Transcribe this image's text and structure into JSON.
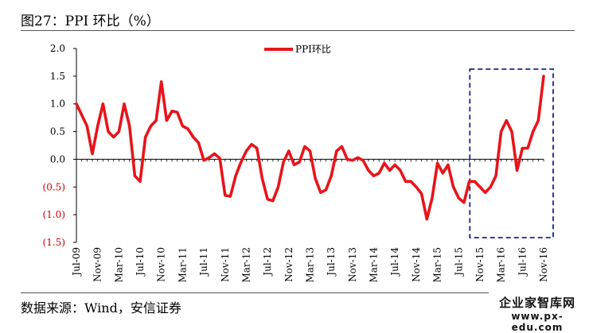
{
  "title": "图27：PPI 环比（%）",
  "source": "数据来源：Wind，安信证券",
  "watermark": {
    "name": "企业家智库网",
    "url": "www.px-edu.com"
  },
  "colors": {
    "series": "#e8141b",
    "negative_tick": "#cc0000",
    "positive_tick": "#000000",
    "highlight_box": "#1f1f8f",
    "axis": "#000000"
  },
  "chart_data": {
    "type": "line",
    "title": "",
    "xlabel": "",
    "ylabel": "",
    "ylim": [
      -1.5,
      2.0
    ],
    "y_ticks": [
      2.0,
      1.5,
      1.0,
      0.5,
      0.0,
      -0.5,
      -1.0,
      -1.5
    ],
    "y_tick_labels": [
      "2.0",
      "1.5",
      "1.0",
      "0.5",
      "0.0",
      "(0.5)",
      "(1.0)",
      "(1.5)"
    ],
    "x_tick_labels": [
      "Jul-09",
      "Nov-09",
      "Mar-10",
      "Jul-10",
      "Nov-10",
      "Mar-11",
      "Jul-11",
      "Nov-11",
      "Mar-12",
      "Jul-12",
      "Nov-12",
      "Mar-13",
      "Jul-13",
      "Nov-13",
      "Mar-14",
      "Jul-14",
      "Nov-14",
      "Mar-15",
      "Jul-15",
      "Nov-15",
      "Mar-16",
      "Jul-16",
      "Nov-16"
    ],
    "legend": "top-center",
    "grid": false,
    "highlight": {
      "from": "Oct-15",
      "to": "Nov-16"
    },
    "series": [
      {
        "name": "PPI环比",
        "x": [
          "Jul-09",
          "Aug-09",
          "Sep-09",
          "Oct-09",
          "Nov-09",
          "Dec-09",
          "Jan-10",
          "Feb-10",
          "Mar-10",
          "Apr-10",
          "May-10",
          "Jun-10",
          "Jul-10",
          "Aug-10",
          "Sep-10",
          "Oct-10",
          "Nov-10",
          "Dec-10",
          "Jan-11",
          "Feb-11",
          "Mar-11",
          "Apr-11",
          "May-11",
          "Jun-11",
          "Jul-11",
          "Aug-11",
          "Sep-11",
          "Oct-11",
          "Nov-11",
          "Dec-11",
          "Jan-12",
          "Feb-12",
          "Mar-12",
          "Apr-12",
          "May-12",
          "Jun-12",
          "Jul-12",
          "Aug-12",
          "Sep-12",
          "Oct-12",
          "Nov-12",
          "Dec-12",
          "Jan-13",
          "Feb-13",
          "Mar-13",
          "Apr-13",
          "May-13",
          "Jun-13",
          "Jul-13",
          "Aug-13",
          "Sep-13",
          "Oct-13",
          "Nov-13",
          "Dec-13",
          "Jan-14",
          "Feb-14",
          "Mar-14",
          "Apr-14",
          "May-14",
          "Jun-14",
          "Jul-14",
          "Aug-14",
          "Sep-14",
          "Oct-14",
          "Nov-14",
          "Dec-14",
          "Jan-15",
          "Feb-15",
          "Mar-15",
          "Apr-15",
          "May-15",
          "Jun-15",
          "Jul-15",
          "Aug-15",
          "Sep-15",
          "Oct-15",
          "Nov-15",
          "Dec-15",
          "Jan-16",
          "Feb-16",
          "Mar-16",
          "Apr-16",
          "May-16",
          "Jun-16",
          "Jul-16",
          "Aug-16",
          "Sep-16",
          "Oct-16",
          "Nov-16"
        ],
        "values": [
          1.0,
          0.8,
          0.6,
          0.1,
          0.6,
          1.0,
          0.5,
          0.4,
          0.5,
          1.0,
          0.6,
          -0.3,
          -0.4,
          0.4,
          0.6,
          0.7,
          1.4,
          0.7,
          0.87,
          0.85,
          0.6,
          0.55,
          0.4,
          0.3,
          -0.02,
          0.03,
          0.1,
          0.02,
          -0.65,
          -0.67,
          -0.3,
          -0.05,
          0.15,
          0.27,
          0.2,
          -0.35,
          -0.72,
          -0.75,
          -0.5,
          -0.05,
          0.15,
          -0.1,
          -0.05,
          0.23,
          0.15,
          -0.35,
          -0.6,
          -0.55,
          -0.3,
          0.15,
          0.23,
          0.0,
          -0.02,
          0.03,
          -0.02,
          -0.2,
          -0.3,
          -0.25,
          -0.07,
          -0.2,
          -0.1,
          -0.2,
          -0.4,
          -0.4,
          -0.5,
          -0.62,
          -1.08,
          -0.7,
          -0.07,
          -0.25,
          -0.1,
          -0.5,
          -0.7,
          -0.78,
          -0.4,
          -0.4,
          -0.5,
          -0.6,
          -0.5,
          -0.3,
          0.5,
          0.7,
          0.5,
          -0.2,
          0.2,
          0.2,
          0.5,
          0.7,
          1.5
        ]
      }
    ]
  }
}
